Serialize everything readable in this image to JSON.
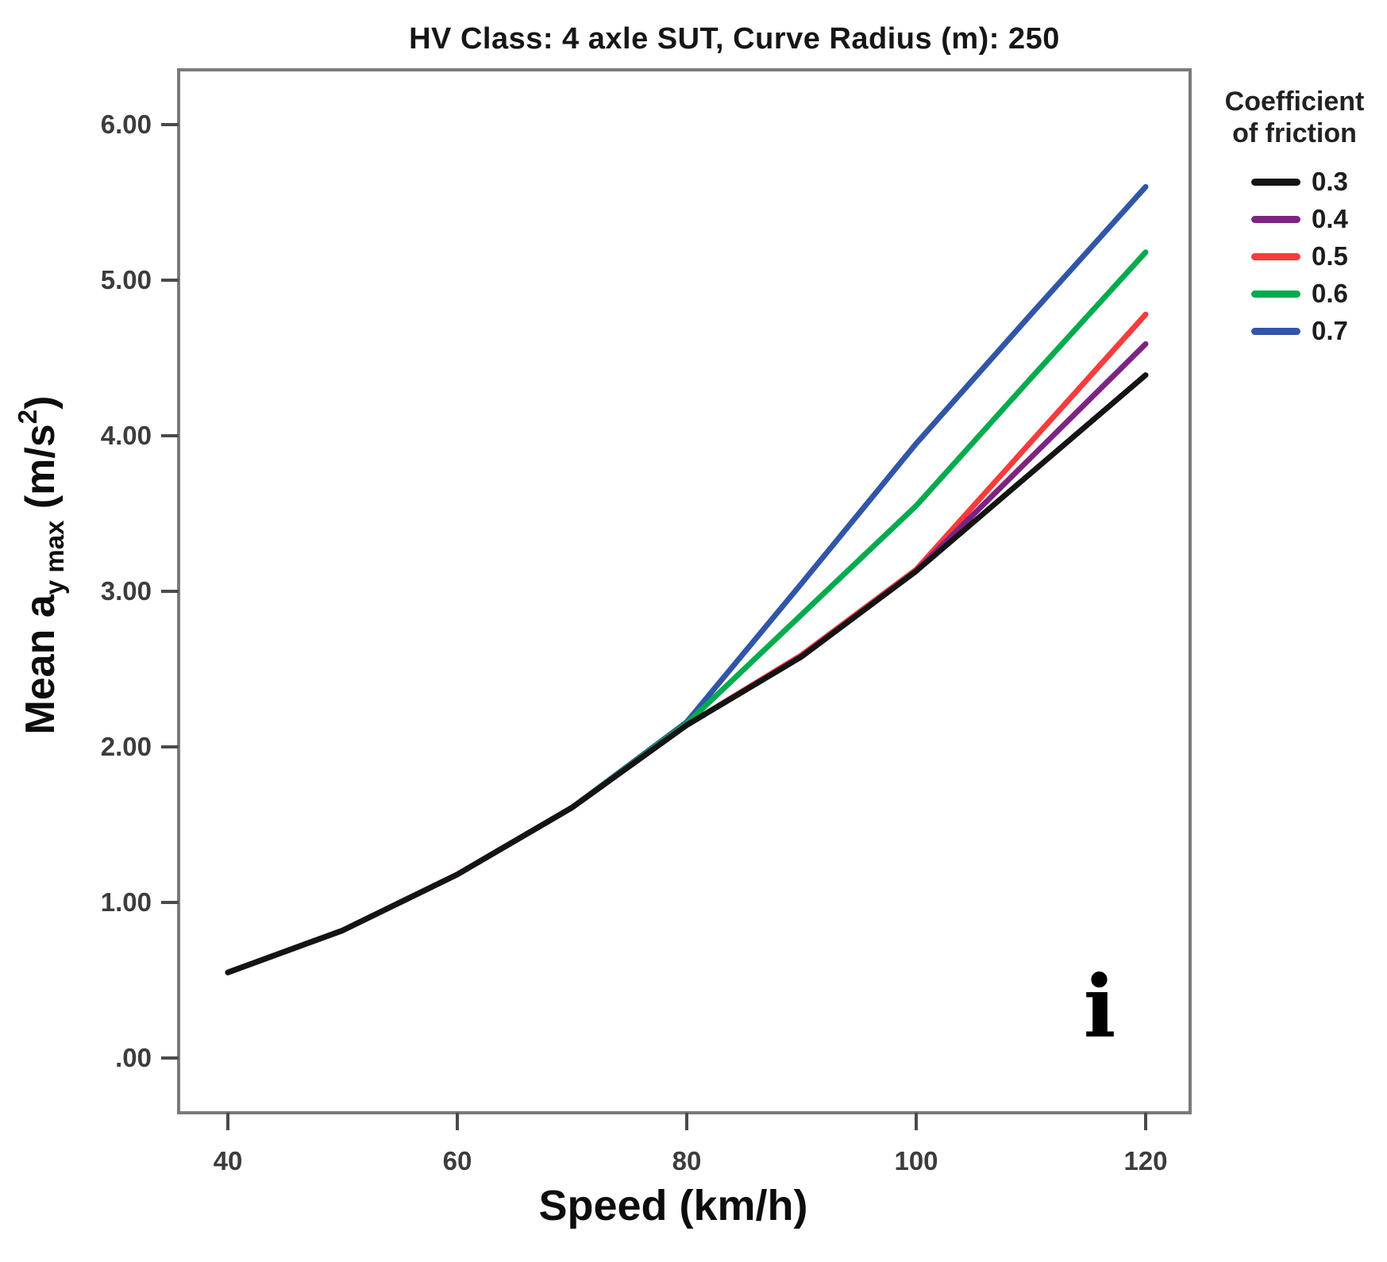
{
  "title": "HV Class: 4 axle SUT, Curve Radius (m): 250",
  "panel_label": "i",
  "ylabel_rich": {
    "main": "Mean a",
    "sub": "y max",
    "unit_open": " (m/s",
    "sup": "2",
    "unit_close": ")"
  },
  "legend": {
    "title_line1": "Coefficient",
    "title_line2": "of friction",
    "entries": [
      {
        "label": "0.3",
        "color": "#141414"
      },
      {
        "label": "0.4",
        "color": "#7d2383"
      },
      {
        "label": "0.5",
        "color": "#f93b3b"
      },
      {
        "label": "0.6",
        "color": "#00ab4e"
      },
      {
        "label": "0.7",
        "color": "#3156a7"
      }
    ]
  },
  "chart_data": {
    "type": "line",
    "title": "HV Class: 4 axle SUT, Curve Radius (m): 250",
    "xlabel": "Speed (km/h)",
    "ylabel": "Mean ay max (m/s²)",
    "legend_title": "Coefficient of friction",
    "legend_position": "right",
    "grid": false,
    "x": [
      40,
      50,
      60,
      70,
      80,
      90,
      100,
      110,
      120
    ],
    "series": [
      {
        "name": "0.3",
        "color": "#141414",
        "values": [
          0.55,
          0.82,
          1.18,
          1.61,
          2.14,
          2.58,
          3.13,
          3.76,
          4.39
        ]
      },
      {
        "name": "0.4",
        "color": "#7d2383",
        "values": [
          0.55,
          0.82,
          1.18,
          1.61,
          2.14,
          2.58,
          3.13,
          3.86,
          4.59
        ]
      },
      {
        "name": "0.5",
        "color": "#f93b3b",
        "values": [
          0.55,
          0.82,
          1.18,
          1.61,
          2.14,
          2.59,
          3.14,
          3.96,
          4.78
        ]
      },
      {
        "name": "0.6",
        "color": "#00ab4e",
        "values": [
          0.55,
          0.82,
          1.18,
          1.61,
          2.15,
          2.85,
          3.55,
          4.37,
          5.18
        ]
      },
      {
        "name": "0.7",
        "color": "#3156a7",
        "values": [
          0.55,
          0.82,
          1.18,
          1.61,
          2.16,
          3.05,
          3.95,
          4.78,
          5.6
        ]
      }
    ],
    "x_ticks": [
      {
        "value": 40,
        "label": "40"
      },
      {
        "value": 60,
        "label": "60"
      },
      {
        "value": 80,
        "label": "80"
      },
      {
        "value": 100,
        "label": "100"
      },
      {
        "value": 120,
        "label": "120"
      }
    ],
    "y_ticks": [
      {
        "value": 6,
        "label": "6.00"
      },
      {
        "value": 5,
        "label": "5.00"
      },
      {
        "value": 4,
        "label": "4.00"
      },
      {
        "value": 3,
        "label": "3.00"
      },
      {
        "value": 2,
        "label": "2.00"
      },
      {
        "value": 1,
        "label": "1.00"
      },
      {
        "value": 0,
        "label": ".00"
      }
    ],
    "xlim": [
      35.7,
      123.9
    ],
    "ylim": [
      -0.35,
      6.35
    ]
  }
}
